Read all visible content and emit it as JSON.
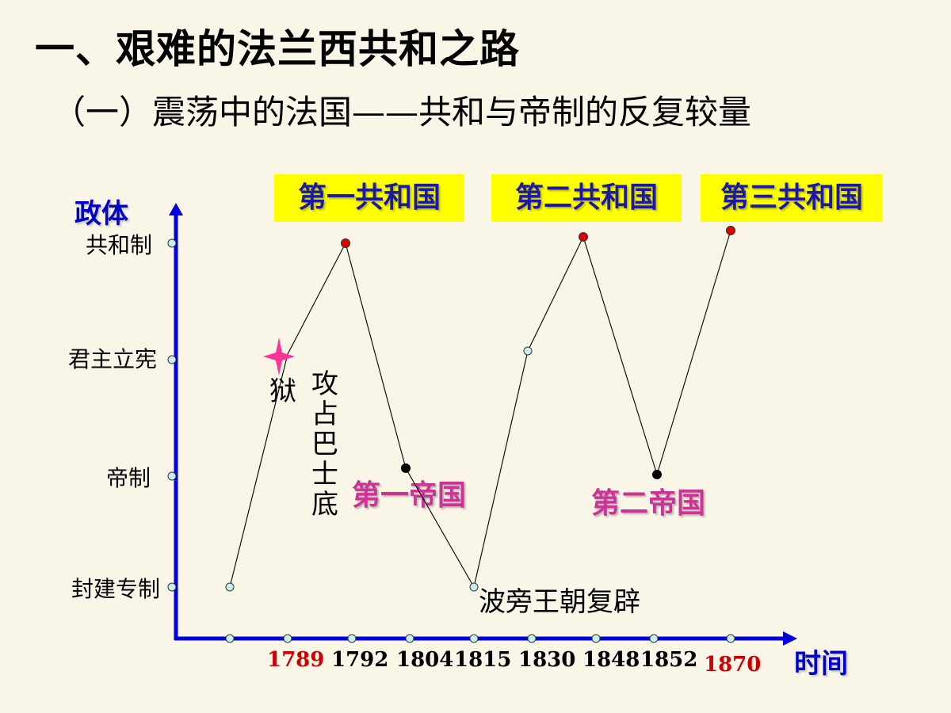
{
  "title": "一、艰难的法兰西共和之路",
  "subtitle": "（一）震荡中的法国——共和与帝制的反复较量",
  "axes": {
    "y_title": "政体",
    "x_title": "时间",
    "y_levels": [
      "封建专制",
      "帝制",
      "君主立宪",
      "共和制"
    ],
    "x_years": [
      "1789",
      "1792",
      "1804",
      "1815",
      "1830",
      "1848",
      "1852",
      "1870"
    ]
  },
  "badges": {
    "republic1": "第一共和国",
    "republic2": "第二共和国",
    "republic3": "第三共和国"
  },
  "empires": {
    "empire1": "第一帝国",
    "empire2": "第二帝国"
  },
  "notes": {
    "bastille_left": "狱",
    "bastille_vertical": "攻占巴士底",
    "restoration": "波旁王朝复辟"
  },
  "colors": {
    "axis": "#0000dd",
    "badge_bg": "#ffff00",
    "badge_text": "#1a1aa6",
    "empire_text": "#cc3399",
    "red_year": "#cc0000",
    "republic_dot": "#dd0000",
    "empire_dot": "#000000",
    "star": "#ff3399"
  }
}
